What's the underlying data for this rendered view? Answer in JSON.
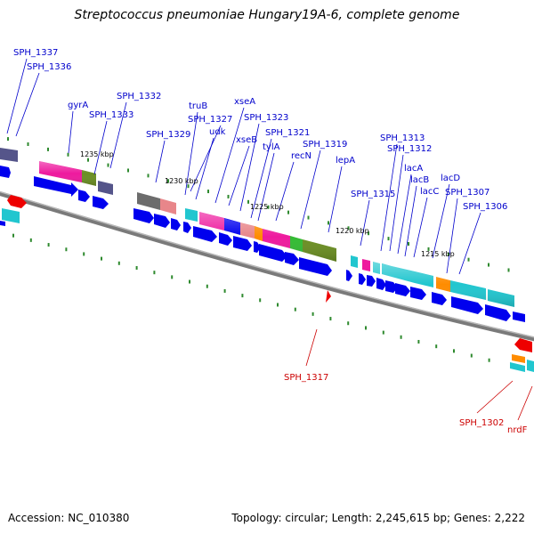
{
  "title": "Streptococcus pneumoniae Hungary19A-6, complete genome",
  "footer": {
    "accession": "Accession: NC_010380",
    "topology": "Topology: circular; Length: 2,245,615 bp; Genes: 2,222"
  },
  "ruler_ticks": [
    "1235 kbp",
    "1230 kbp",
    "1225 kbp",
    "1220 kbp",
    "1215 kbp"
  ],
  "gene_labels_blue": [
    "SPH_1337",
    "SPH_1336",
    "gyrA",
    "SPH_1333",
    "SPH_1332",
    "SPH_1329",
    "truB",
    "SPH_1327",
    "udk",
    "xseA",
    "xseB",
    "SPH_1323",
    "SPH_1321",
    "tylA",
    "recN",
    "SPH_1319",
    "lepA",
    "SPH_1315",
    "SPH_1313",
    "SPH_1312",
    "lacA",
    "lacB",
    "lacC",
    "lacD",
    "SPH_1307",
    "SPH_1306"
  ],
  "gene_labels_red": [
    "SPH_1317",
    "SPH_1302",
    "nrdF"
  ],
  "colors": {
    "label_blue": "#0000cc",
    "label_red": "#cc0000",
    "backbone": "#808080",
    "cds_arrow": "#0000ee",
    "tick_green": "#2f8a2f",
    "magenta": "#ee1a9e",
    "olive": "#6b8e23",
    "cyan": "#21c6cf",
    "salmon": "#e8868a",
    "orange": "#ff8c00",
    "gray": "#6c6c6c",
    "slate": "#55558a",
    "red": "#ee0000",
    "green": "#33bb33"
  }
}
